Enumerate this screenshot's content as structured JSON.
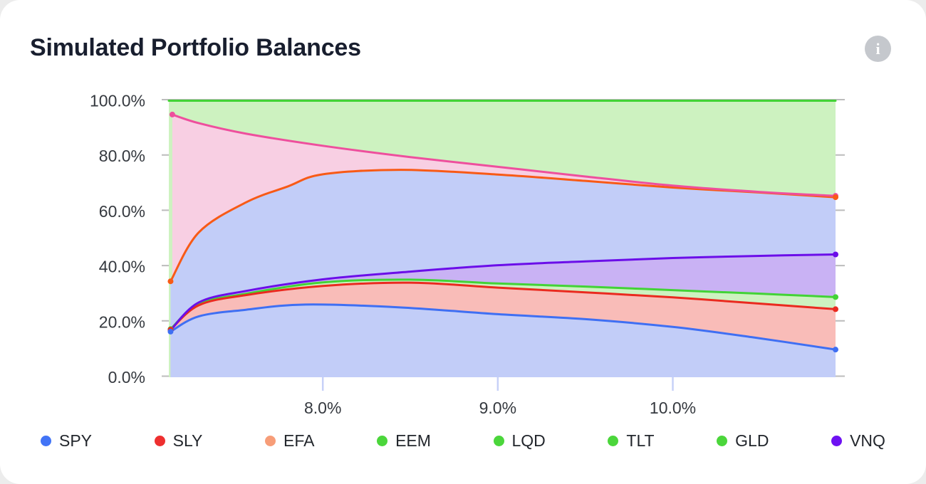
{
  "card": {
    "title": "Simulated Portfolio Balances",
    "info_glyph": "i"
  },
  "legend": {
    "items": [
      {
        "label": "SPY",
        "color": "#4274f6"
      },
      {
        "label": "SLY",
        "color": "#ee2f2f"
      },
      {
        "label": "EFA",
        "color": "#f79d78"
      },
      {
        "label": "EEM",
        "color": "#4bd63b"
      },
      {
        "label": "LQD",
        "color": "#4bd63b"
      },
      {
        "label": "TLT",
        "color": "#4bd63b"
      },
      {
        "label": "GLD",
        "color": "#4bd63b"
      },
      {
        "label": "VNQ",
        "color": "#6e11f2"
      }
    ]
  },
  "chart_data": {
    "type": "area",
    "title": "Simulated Portfolio Balances",
    "xlabel": "",
    "ylabel": "",
    "x_axis": {
      "tick_labels": [
        "8.0%",
        "9.0%",
        "10.0%"
      ],
      "tick_values": [
        8,
        9,
        10
      ],
      "range": [
        7.12,
        10.93
      ],
      "tick_color": "#c7d1f8"
    },
    "y_axis": {
      "tick_labels": [
        "100.0%",
        "80.0%",
        "60.0%",
        "40.0%",
        "20.0%",
        "0.0%"
      ],
      "tick_values": [
        100,
        80,
        60,
        40,
        20,
        0
      ],
      "range": [
        0,
        100
      ],
      "tick_color": "#bcbcbc"
    },
    "grid": "edge-ticks-only",
    "legend_position": "bottom",
    "axis_label_color": "#35393f",
    "series": [
      {
        "id": "green_top",
        "line_color": "#42d336",
        "fill_color": "#cdf2c0",
        "points": [
          [
            7.12,
            100
          ],
          [
            10.93,
            100
          ]
        ]
      },
      {
        "id": "pink",
        "line_color": "#ee4f9d",
        "fill_color": "#f8cfe3",
        "points": [
          [
            7.14,
            95
          ],
          [
            7.29,
            91.9
          ],
          [
            7.56,
            88.1
          ],
          [
            8.0,
            83.7
          ],
          [
            8.5,
            79.6
          ],
          [
            9.0,
            76.1
          ],
          [
            9.5,
            72.6
          ],
          [
            10.0,
            69.3
          ],
          [
            10.5,
            67.0
          ],
          [
            10.93,
            65.6
          ]
        ]
      },
      {
        "id": "orange",
        "line_color": "#f85a16",
        "fill_color": "#c2cdf8",
        "points": [
          [
            7.13,
            34.7
          ],
          [
            7.29,
            52.3
          ],
          [
            7.56,
            63.2
          ],
          [
            7.8,
            69.0
          ],
          [
            8.0,
            73.4
          ],
          [
            8.45,
            75.0
          ],
          [
            9.0,
            73.3
          ],
          [
            9.5,
            71.0
          ],
          [
            10.0,
            68.6
          ],
          [
            10.5,
            66.8
          ],
          [
            10.93,
            65.1
          ]
        ]
      },
      {
        "id": "purple",
        "line_color": "#6b0ee9",
        "fill_color": "#c9b2f4",
        "points": [
          [
            7.13,
            17.0
          ],
          [
            7.29,
            27.0
          ],
          [
            7.56,
            31.2
          ],
          [
            8.0,
            35.4
          ],
          [
            8.5,
            38.2
          ],
          [
            9.0,
            40.5
          ],
          [
            9.5,
            41.9
          ],
          [
            10.0,
            43.1
          ],
          [
            10.5,
            43.9
          ],
          [
            10.93,
            44.4
          ]
        ]
      },
      {
        "id": "green_lower",
        "line_color": "#42d336",
        "fill_color": "#cdf2c0",
        "points": [
          [
            7.13,
            17.4
          ],
          [
            7.29,
            26.5
          ],
          [
            7.56,
            30.2
          ],
          [
            8.0,
            34.3
          ],
          [
            8.5,
            35.3
          ],
          [
            9.0,
            33.9
          ],
          [
            9.5,
            32.8
          ],
          [
            10.0,
            31.5
          ],
          [
            10.5,
            30.2
          ],
          [
            10.93,
            29.0
          ]
        ]
      },
      {
        "id": "red",
        "line_color": "#ea2a1f",
        "fill_color": "#f9bcb8",
        "points": [
          [
            7.13,
            17.2
          ],
          [
            7.29,
            26.0
          ],
          [
            7.56,
            29.7
          ],
          [
            8.0,
            33.0
          ],
          [
            8.5,
            34.2
          ],
          [
            9.0,
            32.4
          ],
          [
            9.5,
            30.7
          ],
          [
            10.0,
            28.9
          ],
          [
            10.5,
            26.6
          ],
          [
            10.93,
            24.6
          ]
        ]
      },
      {
        "id": "blue",
        "line_color": "#3f6ff3",
        "fill_color": "#c2cdf8",
        "points": [
          [
            7.13,
            16.5
          ],
          [
            7.29,
            22.0
          ],
          [
            7.56,
            24.4
          ],
          [
            7.9,
            26.3
          ],
          [
            8.43,
            25.3
          ],
          [
            9.0,
            22.8
          ],
          [
            9.5,
            21.0
          ],
          [
            10.0,
            18.2
          ],
          [
            10.45,
            14.5
          ],
          [
            10.93,
            10.0
          ]
        ]
      }
    ],
    "line_z_order": [
      "green_top",
      "orange",
      "pink",
      "green_lower",
      "red",
      "blue",
      "purple"
    ]
  }
}
